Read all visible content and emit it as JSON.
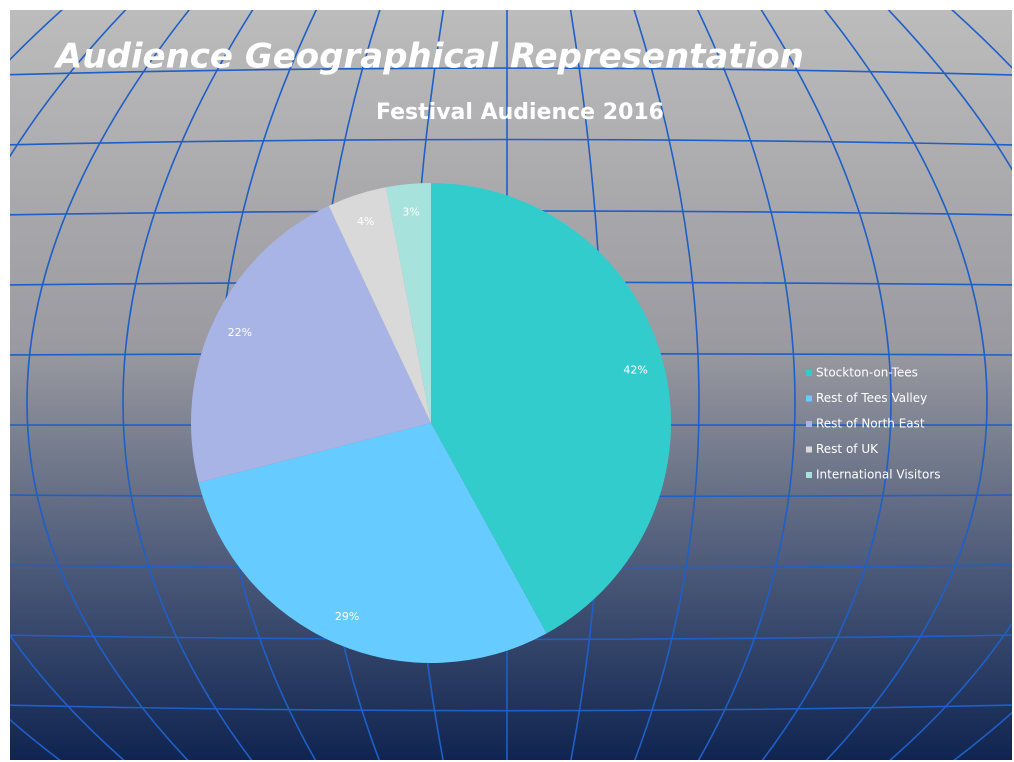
{
  "title": "Audience Geographical Representation",
  "chart_data": {
    "type": "pie",
    "title": "Festival Audience 2016",
    "categories": [
      "Stockton-on-Tees",
      "Rest of Tees Valley",
      "Rest of North East",
      "Rest of UK",
      "International Visitors"
    ],
    "values": [
      42,
      29,
      22,
      4,
      3
    ],
    "value_labels": [
      "42%",
      "29%",
      "22%",
      "4%",
      "3%"
    ],
    "colors": [
      "#33CCCC",
      "#66CCFF",
      "#A9B4E6",
      "#D9D9D9",
      "#A8E2DC"
    ],
    "legend": "right"
  }
}
